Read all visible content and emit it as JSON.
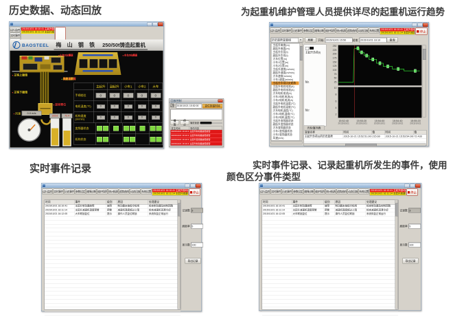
{
  "captions": {
    "tl": "历史数据、动态回放",
    "tr": "为起重机维护管理人员提供详尽的起重机运行趋势",
    "bl": "实时事件记录",
    "br": "实时事件记录、记录起重机所发生的事件，使用颜色区分事件类型"
  },
  "common": {
    "toolbar1": [
      "运行监控",
      "实时事件",
      "历史事件",
      "参数设定",
      "故障诊断",
      "维护保养",
      "统计报表",
      "趋势曲线",
      "动态回放",
      "系统设置"
    ],
    "banner": {
      "line1": "2015/10/21 16:10:41 主起升制动器故障",
      "line2": "2015/10/21 16:11:14 主起升减速机温度预警"
    },
    "stop_label": "停止"
  },
  "scada": {
    "toolbar2": [
      "主起升",
      "副起升",
      "大车",
      "小车1",
      "小车2",
      "变频器",
      "制动器",
      "减速机",
      "电气室",
      "PLC",
      "钢丝绳",
      "打印",
      "帮助"
    ],
    "playback_link": "回放控制",
    "header": {
      "brand": "BAOSTEEL",
      "name": "梅 山 钢 铁",
      "model": "250/50t铸造起重机"
    },
    "hoist_upper": [
      "主钩上极限",
      "主钩上限位"
    ],
    "hoist_lower": [
      "主钩下限位",
      "主钩下极限"
    ],
    "hook_labels": [
      "主钩零位",
      "副钩零位"
    ],
    "bridge_labels_left": [
      "小车1左减速",
      "小车1左停止",
      "小车2左减速",
      "小车2左停止"
    ],
    "bridge_labels_right": [
      "小车1右减速",
      "小车1右停止",
      "小车2右减速",
      "小车2右停止"
    ],
    "status_row": [
      {
        "t": "大车运行",
        "cls": "y"
      },
      {
        "t": "主起升运行",
        "cls": "y"
      },
      {
        "t": "副起升运行",
        "cls": "y"
      },
      {
        "t": "小车1运行",
        "cls": "y"
      },
      {
        "t": "小车2运行",
        "cls": "y"
      },
      {
        "t": "主起升故障",
        "cls": "r"
      },
      {
        "t": "制动器故障",
        "cls": "r"
      },
      {
        "t": "风速正常",
        "cls": "y"
      }
    ],
    "wind": {
      "label": "风速",
      "value": "0.0 m/s"
    },
    "bar_values": [
      "215.6",
      "72.4"
    ],
    "table": {
      "columns": [
        "主起升",
        "副起升",
        "小车1",
        "小车2",
        "大车"
      ],
      "row_labels": [
        "手柄档位",
        "电机温度(℃)",
        "机构速度(m/min)",
        "变频器状态",
        "机构状态"
      ],
      "gear_values": [
        "0",
        "0",
        "0",
        "0",
        "0"
      ],
      "temp_values": [
        "0",
        "0",
        "0",
        "0",
        "0"
      ],
      "speed_values": [
        "0",
        "0",
        "0",
        "0",
        "0"
      ]
    }
  },
  "playback": {
    "title": "回放控制",
    "time_label": "开始时间",
    "time_value": "2015/10/21 15:52:00",
    "locate_button": "定位到该时间",
    "play_button": "播放",
    "stop_button": "停止",
    "speed_label": "播放速度",
    "table_headers": [
      "发生时间",
      "事件内容"
    ],
    "rows": [
      {
        "time": "2015/10/21 16:10:41",
        "text": "主起升制动器故障报警"
      },
      {
        "time": "2015/10/21 16:10:43",
        "text": "主起升制动器故障报警"
      },
      {
        "time": "2015/10/21 16:10:45",
        "text": "主起升变频器故障报警"
      },
      {
        "time": "2015/10/21 16:10:47",
        "text": "主起升制动器故障报警"
      }
    ]
  },
  "trend": {
    "combo": "历史趋势变量组",
    "signals": [
      "主起升高度(m)",
      "副起升高度(m)",
      "主起升负荷(t)",
      "副起升负荷(t)",
      "大车位置(m)",
      "小车1位置(m)",
      "小车2位置(m)",
      "主起升速度(m/min)",
      "副起升速度(m/min)",
      "大车速度(m/min)",
      "小车1速度(m/min)",
      "主起升负荷历史趋势",
      "主起升电机电流(A)",
      "副起升电机电流(A)",
      "大车电机电流(A)",
      "小车1电机电流(A)",
      "小车2电机电流(A)",
      "主起升电机温度(℃)",
      "副起升电机温度(℃)",
      "大车电机温度(℃)",
      "小车1电机温度(℃)",
      "小车2电机温度(℃)",
      "主起升变频器状态",
      "副起升变频器状态",
      "大车变频器状态",
      "小车1变频器状态",
      "小车2变频器状态",
      "风速(m/s)"
    ],
    "tree_highlight": 11,
    "controls": {
      "refresh": "刷新",
      "start_label": "开始",
      "start_value": "2015/10/21 15:50",
      "end_label": "结束",
      "end_value": "2015/10/21 16:10",
      "query": "查询"
    },
    "legend": {
      "series": "主起升负荷(t)",
      "axis1": "轴1",
      "axis2": "轴2"
    },
    "cursor_tab": "光标值列表",
    "table": {
      "headers": [
        "变量名称",
        "时间",
        "值",
        "时间",
        "值"
      ],
      "row": [
        "主起升负荷(t)的历史趋势",
        "2015-10-21 15:52:51.000",
        "215.60",
        "2015-10-21 15:53:54.000",
        "72.430"
      ],
      "empty_rows": [
        "",
        ""
      ]
    },
    "chart_data": {
      "type": "line",
      "title": "主起升负荷历史趋势",
      "ylabel": "负荷(t)",
      "xlim": [
        0,
        200
      ],
      "ylim": [
        0,
        250
      ],
      "y_ticks": [
        "250",
        "225",
        "200",
        "175",
        "150",
        "125",
        "100",
        "75",
        "50",
        "25"
      ],
      "y_ticks_lower": [
        "10",
        "8",
        "6",
        "4",
        "2"
      ],
      "x_ticks": [
        {
          "time": "15:52:40",
          "date": "2015/10/21"
        },
        {
          "time": "15:53:20",
          "date": "2015/10/21"
        },
        {
          "time": "15:54:00",
          "date": "2015/10/21"
        },
        {
          "time": "15:54:40",
          "date": "2015/10/21"
        },
        {
          "time": "15:55:20",
          "date": "2015/10/21"
        }
      ],
      "cursor_x": 38,
      "line_color": "#2fd32f",
      "marker_fill": "#57e257",
      "marker_stroke": "#bdf5bd",
      "points": [
        [
          0,
          18
        ],
        [
          36,
          18
        ],
        [
          38,
          228
        ],
        [
          44,
          232
        ],
        [
          50,
          232
        ],
        [
          50,
          206
        ],
        [
          62,
          206
        ],
        [
          62,
          186
        ],
        [
          74,
          186
        ],
        [
          74,
          162
        ],
        [
          92,
          162
        ],
        [
          92,
          138
        ],
        [
          108,
          138
        ],
        [
          108,
          118
        ],
        [
          130,
          118
        ],
        [
          130,
          102
        ],
        [
          158,
          102
        ],
        [
          158,
          90
        ],
        [
          196,
          90
        ]
      ],
      "markers": [
        [
          47,
          232
        ],
        [
          56,
          206
        ],
        [
          68,
          186
        ],
        [
          83,
          162
        ],
        [
          100,
          138
        ],
        [
          119,
          118
        ],
        [
          144,
          102
        ],
        [
          185,
          90
        ]
      ]
    }
  },
  "event": {
    "table_headers": [
      "时间",
      "事件",
      "级别",
      "原因",
      "处理建议"
    ],
    "rows": [
      {
        "cls": "red",
        "cells": [
          "2015/10/21 16:10:41",
          "主起升制动器故障",
          "故障",
          "制动器未按指令松闸",
          "检查制动器及控制回路"
        ]
      },
      {
        "cls": "yellow",
        "cells": [
          "2015/10/21 16:11:14",
          "主起升减速机温度预警",
          "预警",
          "减速机温度超过上限",
          "检查减速机润滑冷却"
        ]
      },
      {
        "cls": "green",
        "cells": [
          "2015/10/21 16:12:05",
          "大车联锁复位",
          "提示",
          "操作人员复位联锁",
          "系统恢复正常运行"
        ]
      }
    ],
    "empty_rows": [
      "",
      "",
      "",
      "",
      "",
      "",
      "",
      "",
      "",
      "",
      "",
      "",
      "",
      "",
      "",
      "",
      "",
      "",
      "",
      "",
      "",
      "",
      "",
      "",
      "",
      ""
    ],
    "side": {
      "fields": [
        {
          "label": "记录数",
          "value": "3"
        },
        {
          "label": "刷新率",
          "value": "5"
        },
        {
          "label": "显示数",
          "value": "100"
        }
      ],
      "export_button": "导出记录"
    }
  }
}
